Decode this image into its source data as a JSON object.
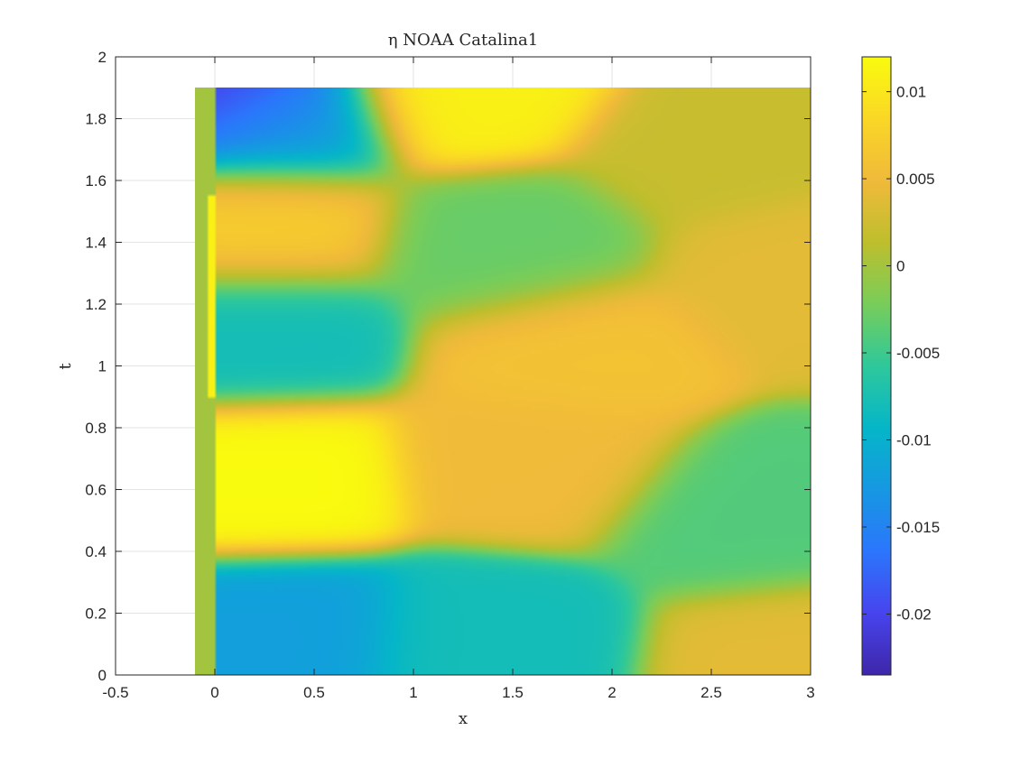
{
  "chart_data": {
    "type": "heatmap",
    "title": "η NOAA Catalina1",
    "xlabel": "x",
    "ylabel": "t",
    "xlim": [
      -0.5,
      3
    ],
    "ylim": [
      0,
      2
    ],
    "x_ticks": [
      "-0.5",
      "0",
      "0.5",
      "1",
      "1.5",
      "2",
      "2.5",
      "3"
    ],
    "y_ticks": [
      "0",
      "0.2",
      "0.4",
      "0.6",
      "0.8",
      "1",
      "1.2",
      "1.4",
      "1.6",
      "1.8",
      "2"
    ],
    "data_extent": {
      "x": [
        -0.1,
        3
      ],
      "t": [
        0,
        1.9
      ]
    },
    "grid": true,
    "colormap": "parula",
    "colorbar": {
      "range": [
        -0.0235,
        0.012
      ],
      "ticks": [
        {
          "value": 0.01,
          "label": "0.01"
        },
        {
          "value": 0.005,
          "label": "0.005"
        },
        {
          "value": 0,
          "label": "0"
        },
        {
          "value": -0.005,
          "label": "-0.005"
        },
        {
          "value": -0.01,
          "label": "-0.01"
        },
        {
          "value": -0.015,
          "label": "-0.015"
        },
        {
          "value": -0.02,
          "label": "-0.02"
        }
      ]
    },
    "features": [
      {
        "x": 0.0,
        "t": 1.9,
        "value": -0.023
      },
      {
        "x": 0.25,
        "t": 1.8,
        "value": -0.012
      },
      {
        "x": 1.3,
        "t": 1.9,
        "value": 0.011
      },
      {
        "x": 0.2,
        "t": 1.45,
        "value": 0.007
      },
      {
        "x": 1.5,
        "t": 1.38,
        "value": -0.003
      },
      {
        "x": 0.2,
        "t": 1.1,
        "value": -0.008
      },
      {
        "x": 1.8,
        "t": 1.05,
        "value": 0.006
      },
      {
        "x": 2.9,
        "t": 1.3,
        "value": 0.004
      },
      {
        "x": 0.25,
        "t": 0.65,
        "value": 0.012
      },
      {
        "x": 1.6,
        "t": 0.7,
        "value": 0.005
      },
      {
        "x": 2.7,
        "t": 0.5,
        "value": -0.004
      },
      {
        "x": 0.3,
        "t": 0.12,
        "value": -0.012
      },
      {
        "x": 1.4,
        "t": 0.1,
        "value": -0.008
      },
      {
        "x": 2.9,
        "t": 0.05,
        "value": 0.004
      },
      {
        "x": 2.5,
        "t": 1.7,
        "value": 0.002
      }
    ],
    "left_strip": {
      "x": [
        -0.1,
        0.0
      ],
      "value": 0.0
    },
    "edge_band": {
      "x": [
        -0.03,
        0.0
      ],
      "t": [
        0.9,
        1.55
      ],
      "value": 0.011
    }
  }
}
